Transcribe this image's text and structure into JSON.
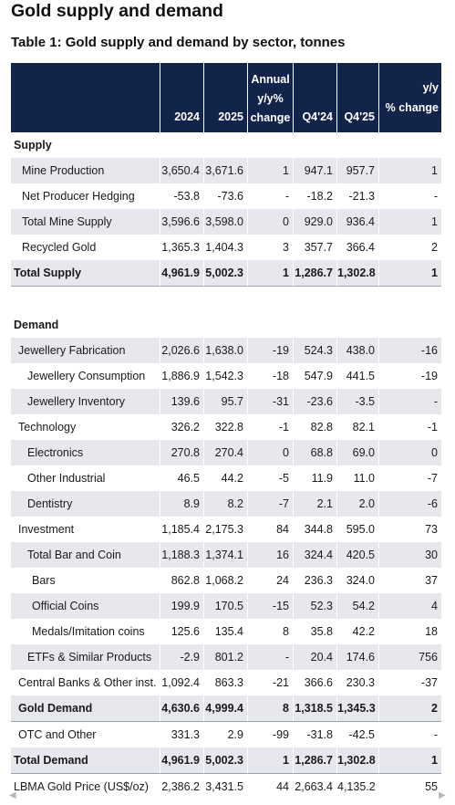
{
  "page_title": "Gold supply and demand",
  "table_title": "Table 1: Gold supply and demand by sector, tonnes",
  "headers": {
    "label": "",
    "y2024": "2024",
    "y2025": "2025",
    "annual_line1": "Annual",
    "annual_line2": "y/y%",
    "annual_line3": "change",
    "q424": "Q4'24",
    "q425": "Q4'25",
    "yy_line1": "y/y",
    "yy_line2": "% change"
  },
  "sections": {
    "supply": "Supply",
    "demand": "Demand"
  },
  "rows": [
    {
      "label": "Mine Production",
      "v2024": "3,650.4",
      "v2025": "3,671.6",
      "annual": "1",
      "q424": "947.1",
      "q425": "957.7",
      "yy": "1"
    },
    {
      "label": "Net Producer Hedging",
      "v2024": "-53.8",
      "v2025": "-73.6",
      "annual": "-",
      "q424": "-18.2",
      "q425": "-21.3",
      "yy": "-"
    },
    {
      "label": "Total Mine Supply",
      "v2024": "3,596.6",
      "v2025": "3,598.0",
      "annual": "0",
      "q424": "929.0",
      "q425": "936.4",
      "yy": "1"
    },
    {
      "label": "Recycled Gold",
      "v2024": "1,365.3",
      "v2025": "1,404.3",
      "annual": "3",
      "q424": "357.7",
      "q425": "366.4",
      "yy": "2"
    },
    {
      "label": "Total Supply",
      "v2024": "4,961.9",
      "v2025": "5,002.3",
      "annual": "1",
      "q424": "1,286.7",
      "q425": "1,302.8",
      "yy": "1"
    },
    {
      "label": "Jewellery Fabrication",
      "v2024": "2,026.6",
      "v2025": "1,638.0",
      "annual": "-19",
      "q424": "524.3",
      "q425": "438.0",
      "yy": "-16"
    },
    {
      "label": "Jewellery Consumption",
      "v2024": "1,886.9",
      "v2025": "1,542.3",
      "annual": "-18",
      "q424": "547.9",
      "q425": "441.5",
      "yy": "-19"
    },
    {
      "label": "Jewellery Inventory",
      "v2024": "139.6",
      "v2025": "95.7",
      "annual": "-31",
      "q424": "-23.6",
      "q425": "-3.5",
      "yy": "-"
    },
    {
      "label": "Technology",
      "v2024": "326.2",
      "v2025": "322.8",
      "annual": "-1",
      "q424": "82.8",
      "q425": "82.1",
      "yy": "-1"
    },
    {
      "label": "Electronics",
      "v2024": "270.8",
      "v2025": "270.4",
      "annual": "0",
      "q424": "68.8",
      "q425": "69.0",
      "yy": "0"
    },
    {
      "label": "Other Industrial",
      "v2024": "46.5",
      "v2025": "44.2",
      "annual": "-5",
      "q424": "11.9",
      "q425": "11.0",
      "yy": "-7"
    },
    {
      "label": "Dentistry",
      "v2024": "8.9",
      "v2025": "8.2",
      "annual": "-7",
      "q424": "2.1",
      "q425": "2.0",
      "yy": "-6"
    },
    {
      "label": "Investment",
      "v2024": "1,185.4",
      "v2025": "2,175.3",
      "annual": "84",
      "q424": "344.8",
      "q425": "595.0",
      "yy": "73"
    },
    {
      "label": "Total Bar and Coin",
      "v2024": "1,188.3",
      "v2025": "1,374.1",
      "annual": "16",
      "q424": "324.4",
      "q425": "420.5",
      "yy": "30"
    },
    {
      "label": "Bars",
      "v2024": "862.8",
      "v2025": "1,068.2",
      "annual": "24",
      "q424": "236.3",
      "q425": "324.0",
      "yy": "37"
    },
    {
      "label": "Official Coins",
      "v2024": "199.9",
      "v2025": "170.5",
      "annual": "-15",
      "q424": "52.3",
      "q425": "54.2",
      "yy": "4"
    },
    {
      "label": "Medals/Imitation coins",
      "v2024": "125.6",
      "v2025": "135.4",
      "annual": "8",
      "q424": "35.8",
      "q425": "42.2",
      "yy": "18"
    },
    {
      "label": "ETFs & Similar Products",
      "v2024": "-2.9",
      "v2025": "801.2",
      "annual": "-",
      "q424": "20.4",
      "q425": "174.6",
      "yy": "756"
    },
    {
      "label": "Central Banks & Other inst.",
      "v2024": "1,092.4",
      "v2025": "863.3",
      "annual": "-21",
      "q424": "366.6",
      "q425": "230.3",
      "yy": "-37"
    },
    {
      "label": "Gold Demand",
      "v2024": "4,630.6",
      "v2025": "4,999.4",
      "annual": "8",
      "q424": "1,318.5",
      "q425": "1,345.3",
      "yy": "2"
    },
    {
      "label": "OTC and Other",
      "v2024": "331.3",
      "v2025": "2.9",
      "annual": "-99",
      "q424": "-31.8",
      "q425": "-42.5",
      "yy": "-"
    },
    {
      "label": "Total Demand",
      "v2024": "4,961.9",
      "v2025": "5,002.3",
      "annual": "1",
      "q424": "1,286.7",
      "q425": "1,302.8",
      "yy": "1"
    },
    {
      "label": "LBMA Gold Price (US$/oz)",
      "v2024": "2,386.2",
      "v2025": "3,431.5",
      "annual": "44",
      "q424": "2,663.4",
      "q425": "4,135.2",
      "yy": "55"
    }
  ],
  "icons": {
    "scroll_left": "chevron-left-icon",
    "scroll_right": "chevron-right-icon"
  }
}
